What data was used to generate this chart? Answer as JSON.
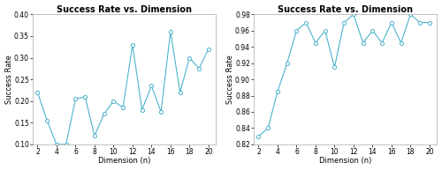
{
  "left": {
    "title": "Success Rate vs. Dimension",
    "xlabel": "Dimension (n)",
    "ylabel": "Success Rate",
    "x": [
      2,
      3,
      4,
      5,
      6,
      7,
      8,
      9,
      10,
      11,
      12,
      13,
      14,
      15,
      16,
      17,
      18,
      19,
      20
    ],
    "y": [
      0.22,
      0.155,
      0.1,
      0.1,
      0.205,
      0.21,
      0.12,
      0.17,
      0.2,
      0.185,
      0.33,
      0.18,
      0.235,
      0.175,
      0.36,
      0.22,
      0.3,
      0.275,
      0.32
    ],
    "ylim": [
      0.1,
      0.4
    ],
    "yticks": [
      0.1,
      0.15,
      0.2,
      0.25,
      0.3,
      0.35,
      0.4
    ],
    "xticks": [
      2,
      4,
      6,
      8,
      10,
      12,
      14,
      16,
      18,
      20
    ],
    "color": "#4db3cc"
  },
  "right": {
    "title": "Success Rate vs. Dimension",
    "xlabel": "Dimension (n)",
    "ylabel": "Success Rate",
    "x": [
      2,
      3,
      4,
      5,
      6,
      7,
      8,
      9,
      10,
      11,
      12,
      13,
      14,
      15,
      16,
      17,
      18,
      19,
      20
    ],
    "y": [
      0.83,
      0.84,
      0.885,
      0.92,
      0.96,
      0.97,
      0.945,
      0.96,
      0.915,
      0.97,
      0.98,
      0.945,
      0.96,
      0.945,
      0.97,
      0.945,
      0.98,
      0.97,
      0.97
    ],
    "ylim": [
      0.82,
      0.98
    ],
    "yticks": [
      0.82,
      0.84,
      0.86,
      0.88,
      0.9,
      0.92,
      0.94,
      0.96,
      0.98
    ],
    "xticks": [
      2,
      4,
      6,
      8,
      10,
      12,
      14,
      16,
      18,
      20
    ],
    "color": "#4db3cc"
  },
  "bg_color": "#ffffff",
  "title_fontsize": 7,
  "label_fontsize": 6,
  "tick_fontsize": 5.5,
  "linewidth": 0.8,
  "markersize": 3
}
